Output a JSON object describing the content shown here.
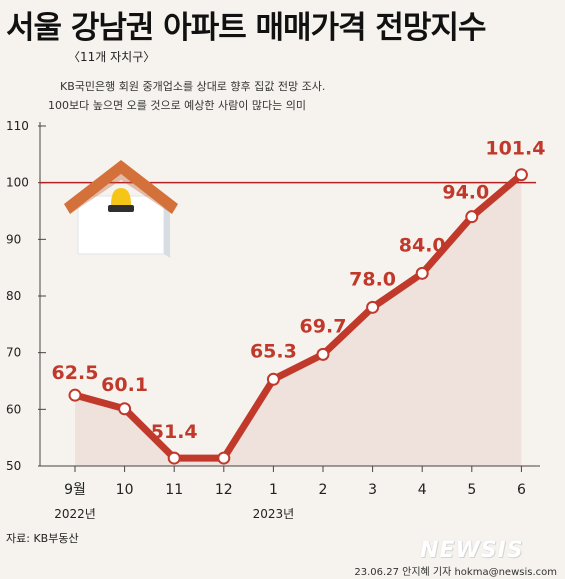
{
  "header": {
    "title": "서울 강남권 아파트 매매가격 전망지수",
    "subtitle": "〈11개 자치구〉",
    "note_line1": "KB국민은행 회원 중개업소를 상대로 향후 집값 전망 조사.",
    "note_line2": "100보다 높으면 오를 것으로 예상한 사람이 많다는 의미"
  },
  "footer": {
    "source": "자료: KB부동산",
    "byline": "23.06.27 안지혜 기자 hokma@newsis.com",
    "watermark": "NEWSIS"
  },
  "colors": {
    "line": "#c0392b",
    "reference": "#b22222",
    "area": "#eddcd6",
    "house_roof": "#d4713a",
    "house_body": "#ffffff",
    "house_light": "#f5c518"
  },
  "icons": [
    "house-icon"
  ],
  "chart_data": {
    "type": "line",
    "categories": [
      "9월",
      "10",
      "11",
      "12",
      "1",
      "2",
      "3",
      "4",
      "5",
      "6"
    ],
    "year_labels": [
      {
        "label": "2022년",
        "at_index": 0
      },
      {
        "label": "2023년",
        "at_index": 4
      }
    ],
    "values": [
      62.5,
      60.1,
      51.4,
      51.4,
      65.3,
      69.7,
      78.0,
      84.0,
      94.0,
      101.4
    ],
    "data_labels": [
      "62.5",
      "60.1",
      "51.4",
      "",
      "65.3",
      "69.7",
      "78.0",
      "84.0",
      "94.0",
      "101.4"
    ],
    "ylim": [
      50,
      110
    ],
    "yticks": [
      50,
      60,
      70,
      80,
      90,
      100,
      110
    ],
    "reference_line": 100,
    "grid": false,
    "title": "서울 강남권 아파트 매매가격 전망지수",
    "xlabel": "",
    "ylabel": ""
  }
}
